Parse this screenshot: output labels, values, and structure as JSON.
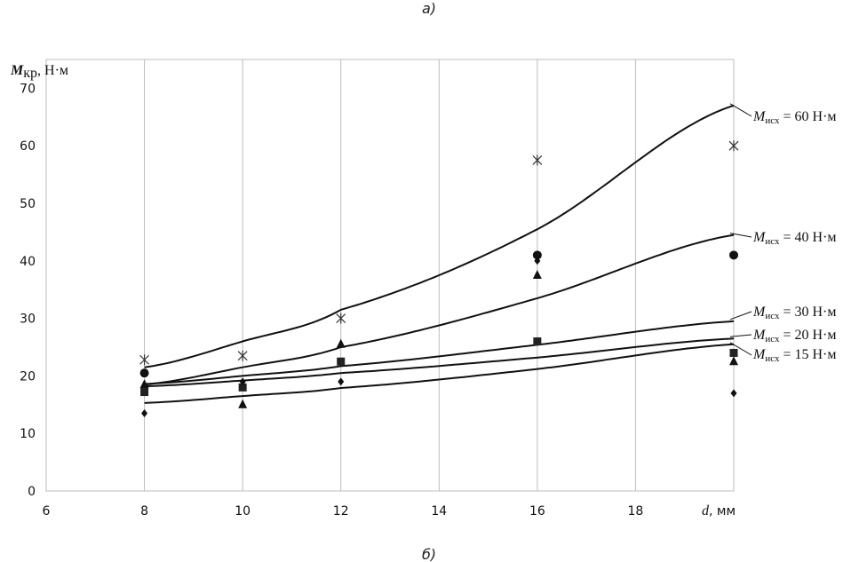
{
  "caption_top": "а)",
  "caption_bottom": "б)",
  "chart_data": {
    "type": "scatter",
    "x_ticks": [
      "6",
      "8",
      "10",
      "12",
      "14",
      "16",
      "18"
    ],
    "y_ticks": [
      "0",
      "10",
      "20",
      "30",
      "40",
      "50",
      "60",
      "70"
    ],
    "xlim": [
      6,
      20
    ],
    "ylim": [
      0,
      75
    ],
    "grid": "vertical",
    "ylabel": {
      "sym": "M",
      "sub": "кр",
      "unit": ", Н·м"
    },
    "xlabel": {
      "sym": "d",
      "unit": ", мм"
    },
    "series": [
      {
        "name": "60 Н·м",
        "label_sym": "M",
        "label_sub": "исх",
        "label_val": " = 60 Н·м",
        "marker": "star",
        "x": [
          8,
          10,
          12,
          16,
          20
        ],
        "y": [
          22.8,
          23.5,
          30,
          57.5,
          60
        ],
        "fit": [
          21.5,
          26.0,
          31.5,
          45.5,
          67.0
        ]
      },
      {
        "name": "40 Н·м",
        "label_sym": "M",
        "label_sub": "исх",
        "label_val": " = 40 Н·м",
        "marker": "circle",
        "x": [
          8,
          16,
          20
        ],
        "y": [
          20.5,
          41,
          41
        ],
        "fit": [
          18.5,
          21.5,
          25.0,
          33.5,
          44.5
        ]
      },
      {
        "name": "30 Н·м",
        "label_sym": "M",
        "label_sub": "исх",
        "label_val": " = 30 Н·м",
        "marker": "triangle",
        "x": [
          8,
          10,
          12,
          16,
          20
        ],
        "y": [
          18.5,
          15,
          25.5,
          37.5,
          22.5
        ],
        "fit": [
          18.6,
          20.0,
          21.7,
          25.4,
          29.5
        ]
      },
      {
        "name": "20 Н·м",
        "label_sym": "M",
        "label_sub": "исх",
        "label_val": " = 20 Н·м",
        "marker": "square",
        "x": [
          8,
          10,
          12,
          16,
          20
        ],
        "y": [
          17.2,
          18,
          22.5,
          26,
          24
        ],
        "fit": [
          18.2,
          19.2,
          20.5,
          23.2,
          26.5
        ]
      },
      {
        "name": "15 Н·м",
        "label_sym": "M",
        "label_sub": "исх",
        "label_val": " = 15 Н·м",
        "marker": "diamond",
        "x": [
          8,
          10,
          12,
          16,
          20
        ],
        "y": [
          13.5,
          19,
          19,
          40,
          17
        ],
        "fit": [
          15.3,
          16.5,
          17.9,
          21.2,
          25.5
        ]
      }
    ]
  }
}
